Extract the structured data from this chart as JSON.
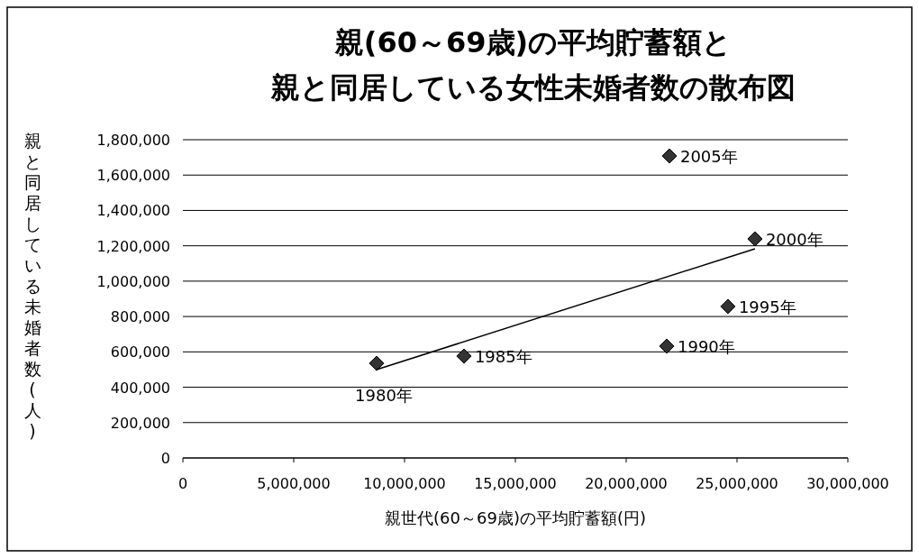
{
  "chart_data": {
    "type": "scatter",
    "title": "親(60～69歳)の平均貯蓄額と",
    "subtitle": "親と同居している女性未婚者数の散布図",
    "xlabel": "親世代(60～69歳)の平均貯蓄額(円)",
    "ylabel": "親と同居している未婚者数(人)",
    "xlim": [
      0,
      30000000
    ],
    "xticks": [
      {
        "value": 0,
        "label": "0"
      },
      {
        "value": 5000000,
        "label": "5,000,000"
      },
      {
        "value": 10000000,
        "label": "10,000,000"
      },
      {
        "value": 15000000,
        "label": "15,000,000"
      },
      {
        "value": 20000000,
        "label": "20,000,000"
      },
      {
        "value": 25000000,
        "label": "25,000,000"
      },
      {
        "value": 30000000,
        "label": "30,000,000"
      }
    ],
    "ylim": [
      0,
      1800000
    ],
    "yticks": [
      {
        "value": 0,
        "label": "0"
      },
      {
        "value": 200000,
        "label": "200,000"
      },
      {
        "value": 400000,
        "label": "400,000"
      },
      {
        "value": 600000,
        "label": "600,000"
      },
      {
        "value": 800000,
        "label": "800,000"
      },
      {
        "value": 1000000,
        "label": "1,000,000"
      },
      {
        "value": 1200000,
        "label": "1,200,000"
      },
      {
        "value": 1400000,
        "label": "1,400,000"
      },
      {
        "value": 1600000,
        "label": "1,600,000"
      },
      {
        "value": 1800000,
        "label": "1,800,000"
      }
    ],
    "grid": "y",
    "marker": "diamond",
    "series": [
      {
        "color": "#333333",
        "x": [
          8740000,
          12680000,
          21830000,
          24590000,
          25810000,
          21950000
        ],
        "values": [
          535000,
          576000,
          632000,
          857000,
          1239000,
          1708000
        ]
      },
      {
        "type": "line",
        "marker": "none",
        "color": "#000000",
        "x": [
          8740000,
          25810000
        ],
        "values": [
          500000,
          1183000
        ]
      }
    ],
    "annotations": [
      {
        "text": "1980年",
        "x": 8740000,
        "y": 535000
      },
      {
        "text": "1985年",
        "x": 12680000,
        "y": 576000
      },
      {
        "text": "1990年",
        "x": 21830000,
        "y": 632000
      },
      {
        "text": "1995年",
        "x": 24590000,
        "y": 857000
      },
      {
        "text": "2000年",
        "x": 25810000,
        "y": 1239000
      },
      {
        "text": "2005年",
        "x": 21950000,
        "y": 1708000
      }
    ]
  }
}
